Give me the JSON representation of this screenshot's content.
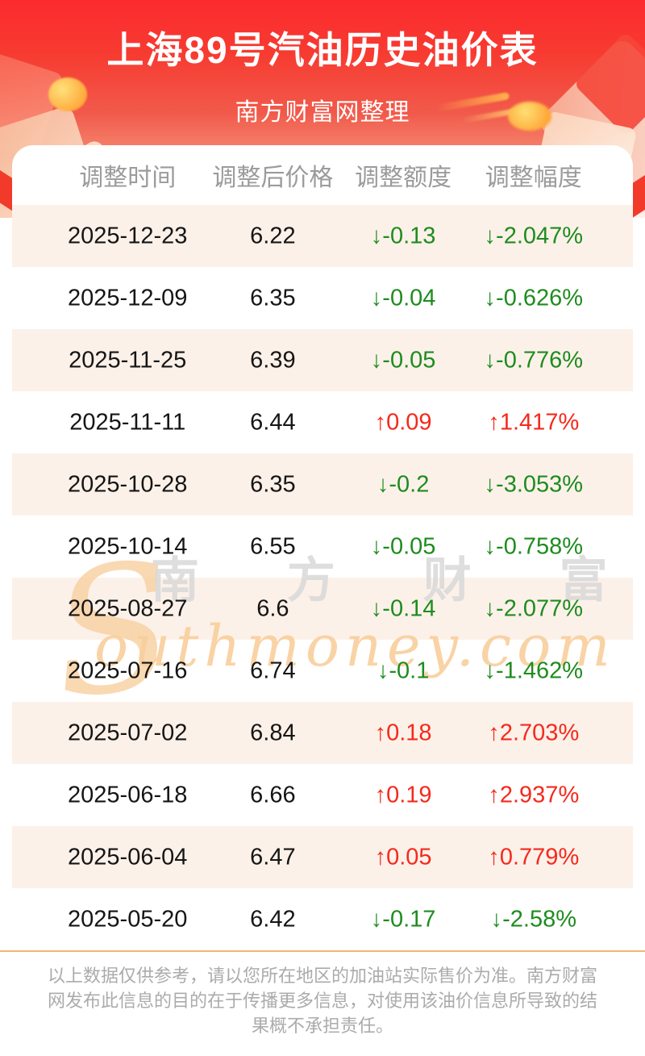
{
  "header": {
    "title": "上海89号汽油历史油价表",
    "subtitle": "南方财富网整理"
  },
  "colors": {
    "hero_top": "#fc2b2e",
    "up": "#f5291d",
    "down": "#1e8c1e",
    "alt_row": "#fcf1e9",
    "divider": "#f3b578",
    "header_text": "#9b9b9b"
  },
  "table": {
    "columns": [
      "调整时间",
      "调整后价格",
      "调整额度",
      "调整幅度"
    ],
    "rows": [
      {
        "date": "2025-12-23",
        "price": "6.22",
        "change": "↓-0.13",
        "pct": "↓-2.047%",
        "dir": "down"
      },
      {
        "date": "2025-12-09",
        "price": "6.35",
        "change": "↓-0.04",
        "pct": "↓-0.626%",
        "dir": "down"
      },
      {
        "date": "2025-11-25",
        "price": "6.39",
        "change": "↓-0.05",
        "pct": "↓-0.776%",
        "dir": "down"
      },
      {
        "date": "2025-11-11",
        "price": "6.44",
        "change": "↑0.09",
        "pct": "↑1.417%",
        "dir": "up"
      },
      {
        "date": "2025-10-28",
        "price": "6.35",
        "change": "↓-0.2",
        "pct": "↓-3.053%",
        "dir": "down"
      },
      {
        "date": "2025-10-14",
        "price": "6.55",
        "change": "↓-0.05",
        "pct": "↓-0.758%",
        "dir": "down"
      },
      {
        "date": "2025-08-27",
        "price": "6.6",
        "change": "↓-0.14",
        "pct": "↓-2.077%",
        "dir": "down"
      },
      {
        "date": "2025-07-16",
        "price": "6.74",
        "change": "↓-0.1",
        "pct": "↓-1.462%",
        "dir": "down"
      },
      {
        "date": "2025-07-02",
        "price": "6.84",
        "change": "↑0.18",
        "pct": "↑2.703%",
        "dir": "up"
      },
      {
        "date": "2025-06-18",
        "price": "6.66",
        "change": "↑0.19",
        "pct": "↑2.937%",
        "dir": "up"
      },
      {
        "date": "2025-06-04",
        "price": "6.47",
        "change": "↑0.05",
        "pct": "↑0.779%",
        "dir": "up"
      },
      {
        "date": "2025-05-20",
        "price": "6.42",
        "change": "↓-0.17",
        "pct": "↓-2.58%",
        "dir": "down"
      }
    ]
  },
  "watermark": {
    "s": "S",
    "cn": "南 方 财 富 网",
    "en": "outhmoney.com"
  },
  "footer": {
    "disclaimer": "以上数据仅供参考，请以您所在地区的加油站实际售价为准。南方财富网发布此信息的目的在于传播更多信息，对使用该油价信息所导致的结果概不承担责任。"
  }
}
